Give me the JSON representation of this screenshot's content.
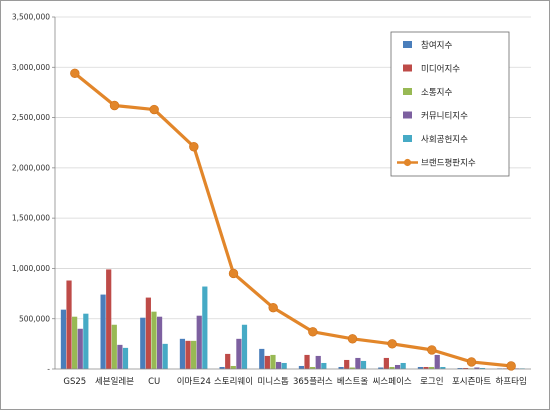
{
  "chart_data": {
    "type": "bar",
    "title": "",
    "xlabel": "",
    "ylabel": "",
    "ylim": [
      0,
      3500000
    ],
    "yticks": [
      0,
      500000,
      1000000,
      1500000,
      2000000,
      2500000,
      3000000,
      3500000
    ],
    "ytick_labels": [
      "-",
      "500,000",
      "1,000,000",
      "1,500,000",
      "2,000,000",
      "2,500,000",
      "3,000,000",
      "3,500,000"
    ],
    "grid": true,
    "legend_position": "top-right",
    "categories": [
      "GS25",
      "세븐일레븐",
      "CU",
      "이마트24",
      "스토리웨이",
      "미니스톱",
      "365플러스",
      "베스트올",
      "씨스페이스",
      "로그인",
      "포시즌마트",
      "하프타임"
    ],
    "series": [
      {
        "name": "참여지수",
        "kind": "bar",
        "color": "#4a7ebb",
        "values": [
          590000,
          740000,
          510000,
          300000,
          20000,
          200000,
          30000,
          20000,
          15000,
          20000,
          10000,
          5000
        ]
      },
      {
        "name": "미디어지수",
        "kind": "bar",
        "color": "#be4b48",
        "values": [
          880000,
          990000,
          710000,
          280000,
          150000,
          130000,
          140000,
          90000,
          110000,
          20000,
          10000,
          5000
        ]
      },
      {
        "name": "소통지수",
        "kind": "bar",
        "color": "#98b954",
        "values": [
          520000,
          440000,
          570000,
          280000,
          30000,
          140000,
          20000,
          15000,
          20000,
          20000,
          5000,
          5000
        ]
      },
      {
        "name": "커뮤니티지수",
        "kind": "bar",
        "color": "#7d60a0",
        "values": [
          400000,
          240000,
          520000,
          530000,
          300000,
          70000,
          130000,
          110000,
          40000,
          140000,
          15000,
          5000
        ]
      },
      {
        "name": "사회공헌지수",
        "kind": "bar",
        "color": "#46aac5",
        "values": [
          550000,
          210000,
          250000,
          820000,
          440000,
          60000,
          60000,
          80000,
          60000,
          20000,
          10000,
          5000
        ]
      },
      {
        "name": "브랜드평판지수",
        "kind": "line",
        "color": "#e2862a",
        "values": [
          2940000,
          2620000,
          2580000,
          2210000,
          950000,
          610000,
          370000,
          300000,
          250000,
          190000,
          70000,
          30000
        ]
      }
    ]
  }
}
